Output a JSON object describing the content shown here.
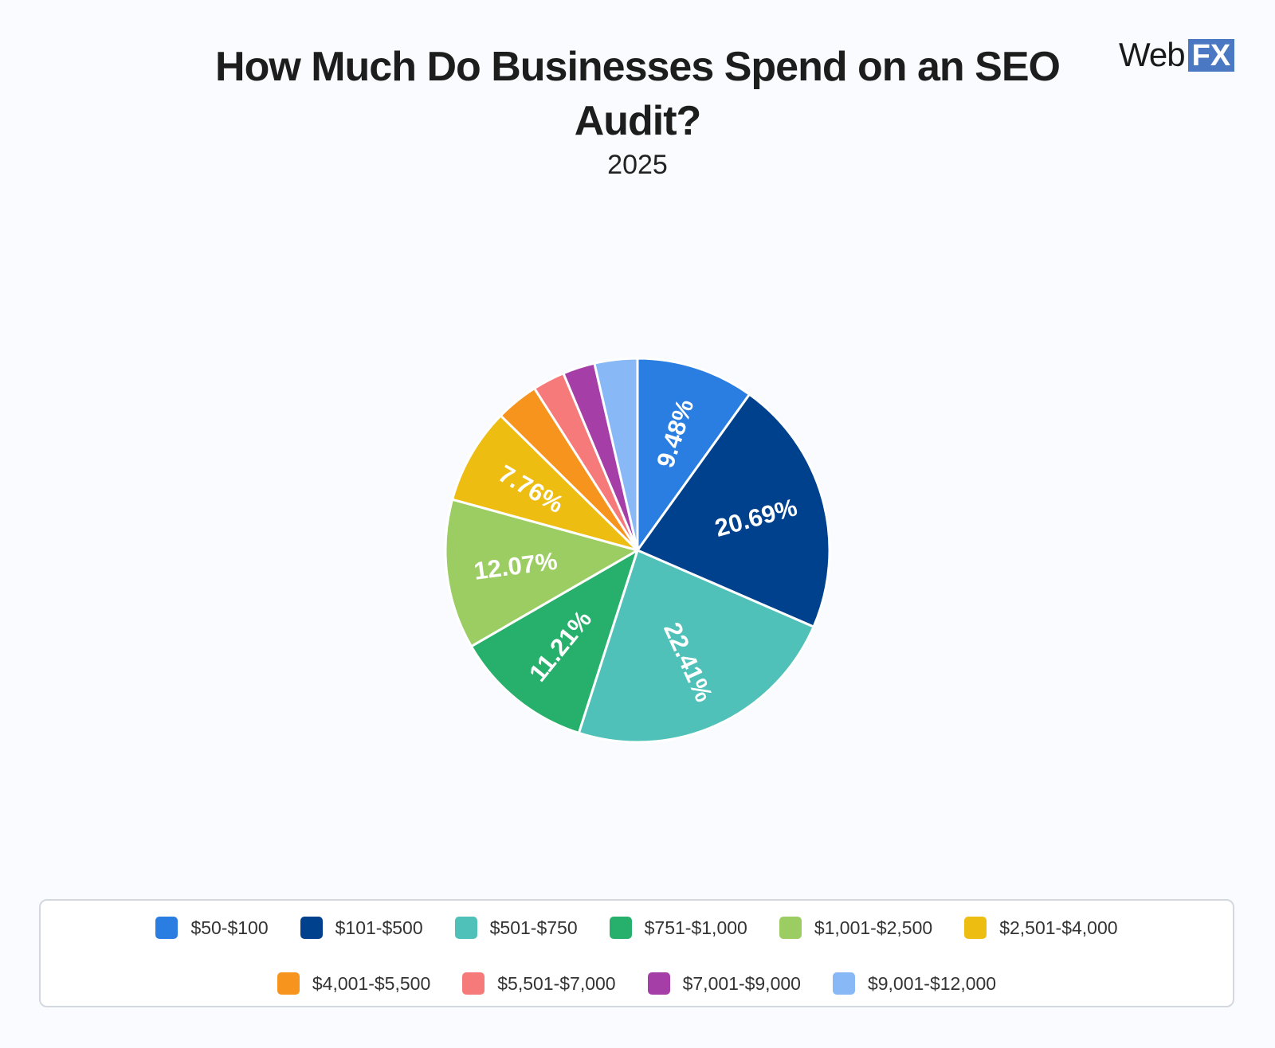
{
  "header": {
    "title": "How Much Do Businesses Spend on an SEO Audit?",
    "subtitle": "2025",
    "logo_text": "Web",
    "logo_box": "FX"
  },
  "chart_data": {
    "type": "pie",
    "title": "How Much Do Businesses Spend on an SEO Audit?",
    "subtitle": "2025",
    "legend_position": "bottom",
    "slices": [
      {
        "label": "$50-$100",
        "value": 9.48,
        "display": "9.48%",
        "color": "#2a7de1"
      },
      {
        "label": "$101-$500",
        "value": 20.69,
        "display": "20.69%",
        "color": "#00418e"
      },
      {
        "label": "$501-$750",
        "value": 22.41,
        "display": "22.41%",
        "color": "#4fc1b8"
      },
      {
        "label": "$751-$1,000",
        "value": 11.21,
        "display": "11.21%",
        "color": "#27b06b"
      },
      {
        "label": "$1,001-$2,500",
        "value": 12.07,
        "display": "12.07%",
        "color": "#9ccd62"
      },
      {
        "label": "$2,501-$4,000",
        "value": 7.76,
        "display": "7.76%",
        "color": "#eebd12"
      },
      {
        "label": "$4,001-$5,500",
        "value": 3.45,
        "display": "",
        "color": "#f7941e"
      },
      {
        "label": "$5,501-$7,000",
        "value": 2.59,
        "display": "",
        "color": "#f77a7a"
      },
      {
        "label": "$7,001-$9,000",
        "value": 2.59,
        "display": "",
        "color": "#a63ea8"
      },
      {
        "label": "$9,001-$12,000",
        "value": 3.45,
        "display": "",
        "color": "#88b9f6"
      }
    ]
  }
}
